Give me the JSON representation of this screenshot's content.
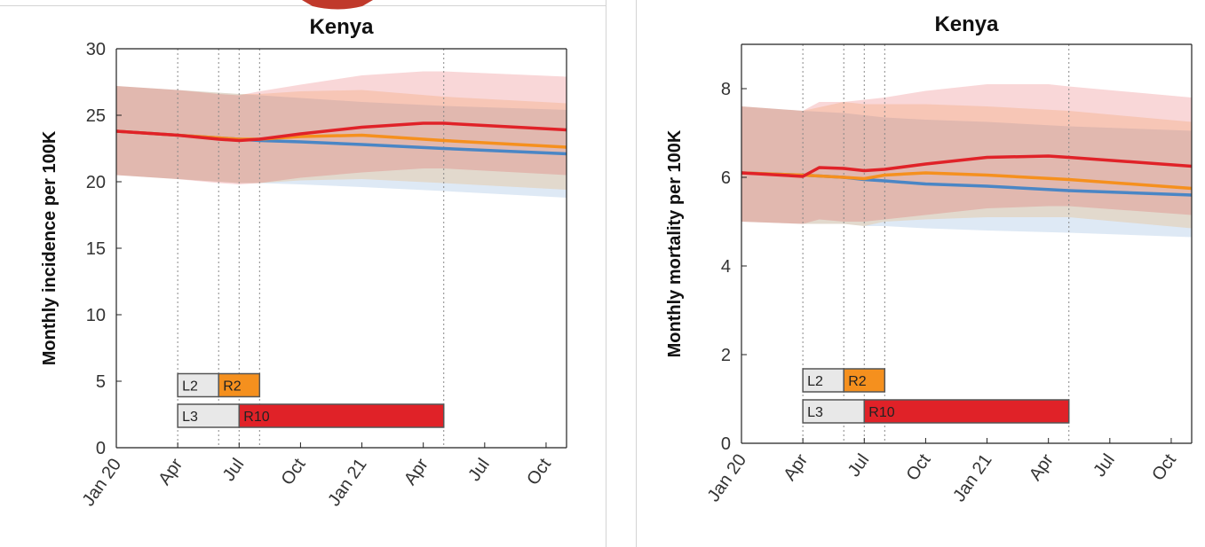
{
  "chart_data": [
    {
      "type": "line",
      "title": "Kenya",
      "xlabel": "",
      "ylabel": "Monthly incidence per 100K",
      "ylim": [
        0,
        30
      ],
      "yticks": [
        0,
        5,
        10,
        15,
        20,
        25,
        30
      ],
      "xlim": [
        0,
        22
      ],
      "xticks": [
        0,
        3,
        6,
        9,
        12,
        15,
        18,
        21
      ],
      "xticklabels": [
        "Jan 20",
        "Apr",
        "Jul",
        "Oct",
        "Jan 21",
        "Apr",
        "Jul",
        "Oct"
      ],
      "grid": false,
      "vlines": [
        3,
        5,
        6,
        7,
        16
      ],
      "colors": {
        "blue": "#4a86c5",
        "orange": "#f5901e",
        "red": "#e02228"
      },
      "series": [
        {
          "color": "#4a86c5",
          "x": [
            0,
            3,
            5,
            6,
            7,
            9,
            12,
            16,
            22
          ],
          "y": [
            23.8,
            23.5,
            23.3,
            23.2,
            23.1,
            23.0,
            22.8,
            22.5,
            22.1
          ],
          "band_low": [
            20.5,
            20.2,
            20.0,
            19.9,
            19.9,
            19.8,
            19.6,
            19.3,
            18.8
          ],
          "band_high": [
            27.2,
            26.9,
            26.7,
            26.6,
            26.5,
            26.3,
            26.0,
            25.7,
            25.4
          ]
        },
        {
          "color": "#f5901e",
          "x": [
            0,
            3,
            5,
            6,
            7,
            9,
            12,
            16,
            22
          ],
          "y": [
            23.8,
            23.5,
            23.3,
            23.2,
            23.2,
            23.4,
            23.5,
            23.1,
            22.6
          ],
          "band_low": [
            20.5,
            20.2,
            20.0,
            19.9,
            19.9,
            20.1,
            20.2,
            19.9,
            19.4
          ],
          "band_high": [
            27.2,
            26.9,
            26.7,
            26.6,
            26.6,
            26.8,
            26.9,
            26.4,
            25.9
          ]
        },
        {
          "color": "#e02228",
          "x": [
            0,
            3,
            5,
            6,
            7,
            9,
            12,
            15,
            16,
            22
          ],
          "y": [
            23.8,
            23.5,
            23.2,
            23.1,
            23.2,
            23.6,
            24.1,
            24.4,
            24.4,
            23.9
          ],
          "band_low": [
            20.5,
            20.2,
            19.9,
            19.8,
            19.9,
            20.3,
            20.7,
            21.0,
            21.0,
            20.5
          ],
          "band_high": [
            27.2,
            26.9,
            26.6,
            26.5,
            26.8,
            27.3,
            28.0,
            28.3,
            28.3,
            27.9
          ]
        }
      ],
      "intervention_boxes": [
        {
          "rows": [
            {
              "label": "L2",
              "x0": 3,
              "x1": 5,
              "fill": "#e8e8e8"
            },
            {
              "label": "R2",
              "x0": 5,
              "x1": 7,
              "fill": "#f5901e"
            }
          ],
          "ycenter": 4.7
        },
        {
          "rows": [
            {
              "label": "L3",
              "x0": 3,
              "x1": 6,
              "fill": "#e8e8e8"
            },
            {
              "label": "R10",
              "x0": 6,
              "x1": 16,
              "fill": "#e02228"
            }
          ],
          "ycenter": 2.4
        }
      ]
    },
    {
      "type": "line",
      "title": "Kenya",
      "xlabel": "",
      "ylabel": "Monthly mortality per 100K",
      "ylim": [
        0,
        9
      ],
      "yticks": [
        0,
        2,
        4,
        6,
        8
      ],
      "xlim": [
        0,
        22
      ],
      "xticks": [
        0,
        3,
        6,
        9,
        12,
        15,
        18,
        21
      ],
      "xticklabels": [
        "Jan 20",
        "Apr",
        "Jul",
        "Oct",
        "Jan 21",
        "Apr",
        "Jul",
        "Oct"
      ],
      "grid": false,
      "vlines": [
        3,
        5,
        6,
        7,
        16
      ],
      "colors": {
        "blue": "#4a86c5",
        "orange": "#f5901e",
        "red": "#e02228"
      },
      "series": [
        {
          "color": "#4a86c5",
          "x": [
            0,
            3,
            5,
            6,
            7,
            9,
            12,
            16,
            22
          ],
          "y": [
            6.1,
            6.05,
            6.0,
            5.95,
            5.92,
            5.85,
            5.8,
            5.7,
            5.6
          ],
          "band_low": [
            5.0,
            4.95,
            4.95,
            4.9,
            4.9,
            4.85,
            4.8,
            4.75,
            4.65
          ],
          "band_high": [
            7.6,
            7.5,
            7.45,
            7.4,
            7.35,
            7.3,
            7.25,
            7.15,
            7.05
          ]
        },
        {
          "color": "#f5901e",
          "x": [
            0,
            3,
            5,
            6,
            7,
            9,
            12,
            16,
            22
          ],
          "y": [
            6.1,
            6.05,
            6.0,
            5.97,
            6.05,
            6.1,
            6.05,
            5.95,
            5.75
          ],
          "band_low": [
            5.0,
            4.95,
            4.95,
            4.9,
            5.0,
            5.05,
            5.1,
            5.1,
            4.85
          ],
          "band_high": [
            7.6,
            7.5,
            7.7,
            7.65,
            7.65,
            7.65,
            7.6,
            7.5,
            7.25
          ]
        },
        {
          "color": "#e02228",
          "x": [
            0,
            3,
            3.8,
            5,
            6,
            7,
            9,
            12,
            15,
            16,
            22
          ],
          "y": [
            6.1,
            6.02,
            6.22,
            6.2,
            6.15,
            6.18,
            6.3,
            6.45,
            6.48,
            6.45,
            6.25
          ],
          "band_low": [
            5.0,
            4.95,
            5.05,
            5.0,
            5.0,
            5.05,
            5.15,
            5.3,
            5.35,
            5.35,
            5.15
          ],
          "band_high": [
            7.6,
            7.5,
            7.7,
            7.7,
            7.75,
            7.8,
            7.95,
            8.1,
            8.1,
            8.05,
            7.8
          ]
        }
      ],
      "intervention_boxes": [
        {
          "rows": [
            {
              "label": "L2",
              "x0": 3,
              "x1": 5,
              "fill": "#e8e8e8"
            },
            {
              "label": "R2",
              "x0": 5,
              "x1": 7,
              "fill": "#f5901e"
            }
          ],
          "ycenter": 1.42
        },
        {
          "rows": [
            {
              "label": "L3",
              "x0": 3,
              "x1": 6,
              "fill": "#e8e8e8"
            },
            {
              "label": "R10",
              "x0": 6,
              "x1": 16,
              "fill": "#e02228"
            }
          ],
          "ycenter": 0.72
        }
      ]
    }
  ]
}
